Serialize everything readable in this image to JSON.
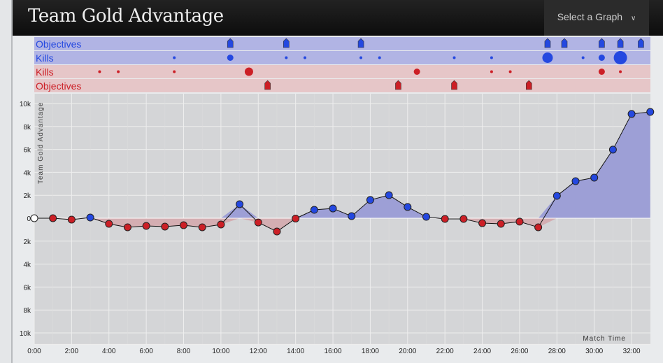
{
  "header": {
    "title": "Team Gold Advantage",
    "select_label": "Select a Graph",
    "select_icon": "chevron-down-icon"
  },
  "colors": {
    "blue": "#2448e0",
    "red": "#cc1f26",
    "blue_band": "#b1b4e4",
    "red_band": "#e6c6c8",
    "plot_bg": "#d4d5d7"
  },
  "timeline": {
    "rows": [
      {
        "label": "Objectives",
        "team": "blue",
        "type": "objective",
        "events": [
          10.5,
          13.5,
          17.5,
          27.5,
          28.4,
          30.4,
          31.4,
          32.5
        ]
      },
      {
        "label": "Kills",
        "team": "blue",
        "type": "kill",
        "events": [
          {
            "t": 7.5,
            "s": 1
          },
          {
            "t": 10.5,
            "s": 2
          },
          {
            "t": 13.5,
            "s": 1
          },
          {
            "t": 14.5,
            "s": 1
          },
          {
            "t": 17.5,
            "s": 1
          },
          {
            "t": 18.5,
            "s": 1
          },
          {
            "t": 22.5,
            "s": 1
          },
          {
            "t": 24.5,
            "s": 1
          },
          {
            "t": 27.5,
            "s": 4
          },
          {
            "t": 29.4,
            "s": 1
          },
          {
            "t": 30.4,
            "s": 2
          },
          {
            "t": 31.4,
            "s": 5
          }
        ]
      },
      {
        "label": "Kills",
        "team": "red",
        "type": "kill",
        "events": [
          {
            "t": 3.5,
            "s": 1
          },
          {
            "t": 4.5,
            "s": 1
          },
          {
            "t": 7.5,
            "s": 1
          },
          {
            "t": 11.5,
            "s": 3
          },
          {
            "t": 20.5,
            "s": 2
          },
          {
            "t": 24.5,
            "s": 1
          },
          {
            "t": 25.5,
            "s": 1
          },
          {
            "t": 30.4,
            "s": 2
          },
          {
            "t": 31.4,
            "s": 1
          }
        ]
      },
      {
        "label": "Objectives",
        "team": "red",
        "type": "objective",
        "events": [
          12.5,
          19.5,
          22.5,
          26.5
        ]
      }
    ]
  },
  "chart_data": {
    "type": "area",
    "title": "Team Gold Advantage",
    "ylabel": "Team Gold Advantage",
    "xlabel": "Match Time",
    "xlim": [
      0,
      33
    ],
    "ylim": [
      -11000,
      10000
    ],
    "yticks": [
      10000,
      8000,
      6000,
      4000,
      2000,
      0,
      -2000,
      -4000,
      -6000,
      -8000,
      -10000
    ],
    "ytick_labels": [
      "10k",
      "8k",
      "6k",
      "4k",
      "2k",
      "0",
      "2k",
      "4k",
      "6k",
      "8k",
      "10k"
    ],
    "xtick_labels": [
      "0:00",
      "2:00",
      "4:00",
      "6:00",
      "8:00",
      "10:00",
      "12:00",
      "14:00",
      "16:00",
      "18:00",
      "20:00",
      "22:00",
      "24:00",
      "26:00",
      "28:00",
      "30:00",
      "32:00"
    ],
    "grid": true,
    "x": [
      0,
      1,
      2,
      3,
      4,
      5,
      6,
      7,
      8,
      9,
      10,
      11,
      12,
      13,
      14,
      15,
      16,
      17,
      18,
      19,
      20,
      21,
      22,
      23,
      24,
      25,
      26,
      27,
      28,
      29,
      30,
      31,
      32,
      33
    ],
    "values": [
      0,
      0,
      -120,
      60,
      -490,
      -790,
      -670,
      -730,
      -610,
      -790,
      -550,
      1220,
      -370,
      -1160,
      -30,
      730,
      850,
      180,
      1590,
      2010,
      980,
      120,
      -60,
      -60,
      -430,
      -490,
      -300,
      -790,
      1950,
      3230,
      3540,
      5980,
      9090,
      9270
    ]
  }
}
